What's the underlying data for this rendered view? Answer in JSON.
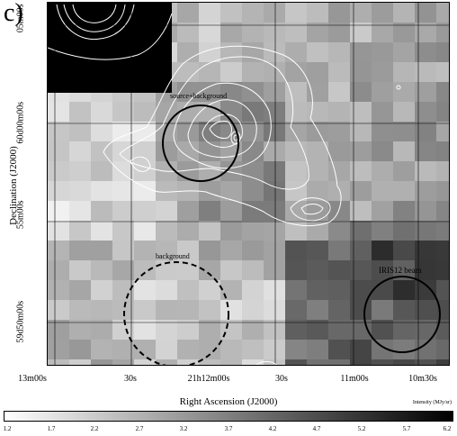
{
  "panel_label": "c)",
  "axes": {
    "x_title": "Right Ascension (J2000)",
    "y_title": "Declination (J2000)",
    "x_ticks": [
      "13m00s",
      "30s",
      "21h12m00s",
      "30s",
      "11m00s",
      "10m30s"
    ],
    "y_ticks": [
      "05m00s",
      "60d00m00s",
      "55m00s",
      "59d50m00s"
    ]
  },
  "annotations": {
    "source_background": "source+background",
    "background": "background",
    "beam": "IRIS12 beam"
  },
  "colorbar": {
    "title": "Intensity (MJy/sr)",
    "labels": [
      "1.2",
      "1.7",
      "2.2",
      "2.7",
      "3.2",
      "3.7",
      "4.2",
      "4.7",
      "5.2",
      "5.7",
      "6.2"
    ]
  }
}
